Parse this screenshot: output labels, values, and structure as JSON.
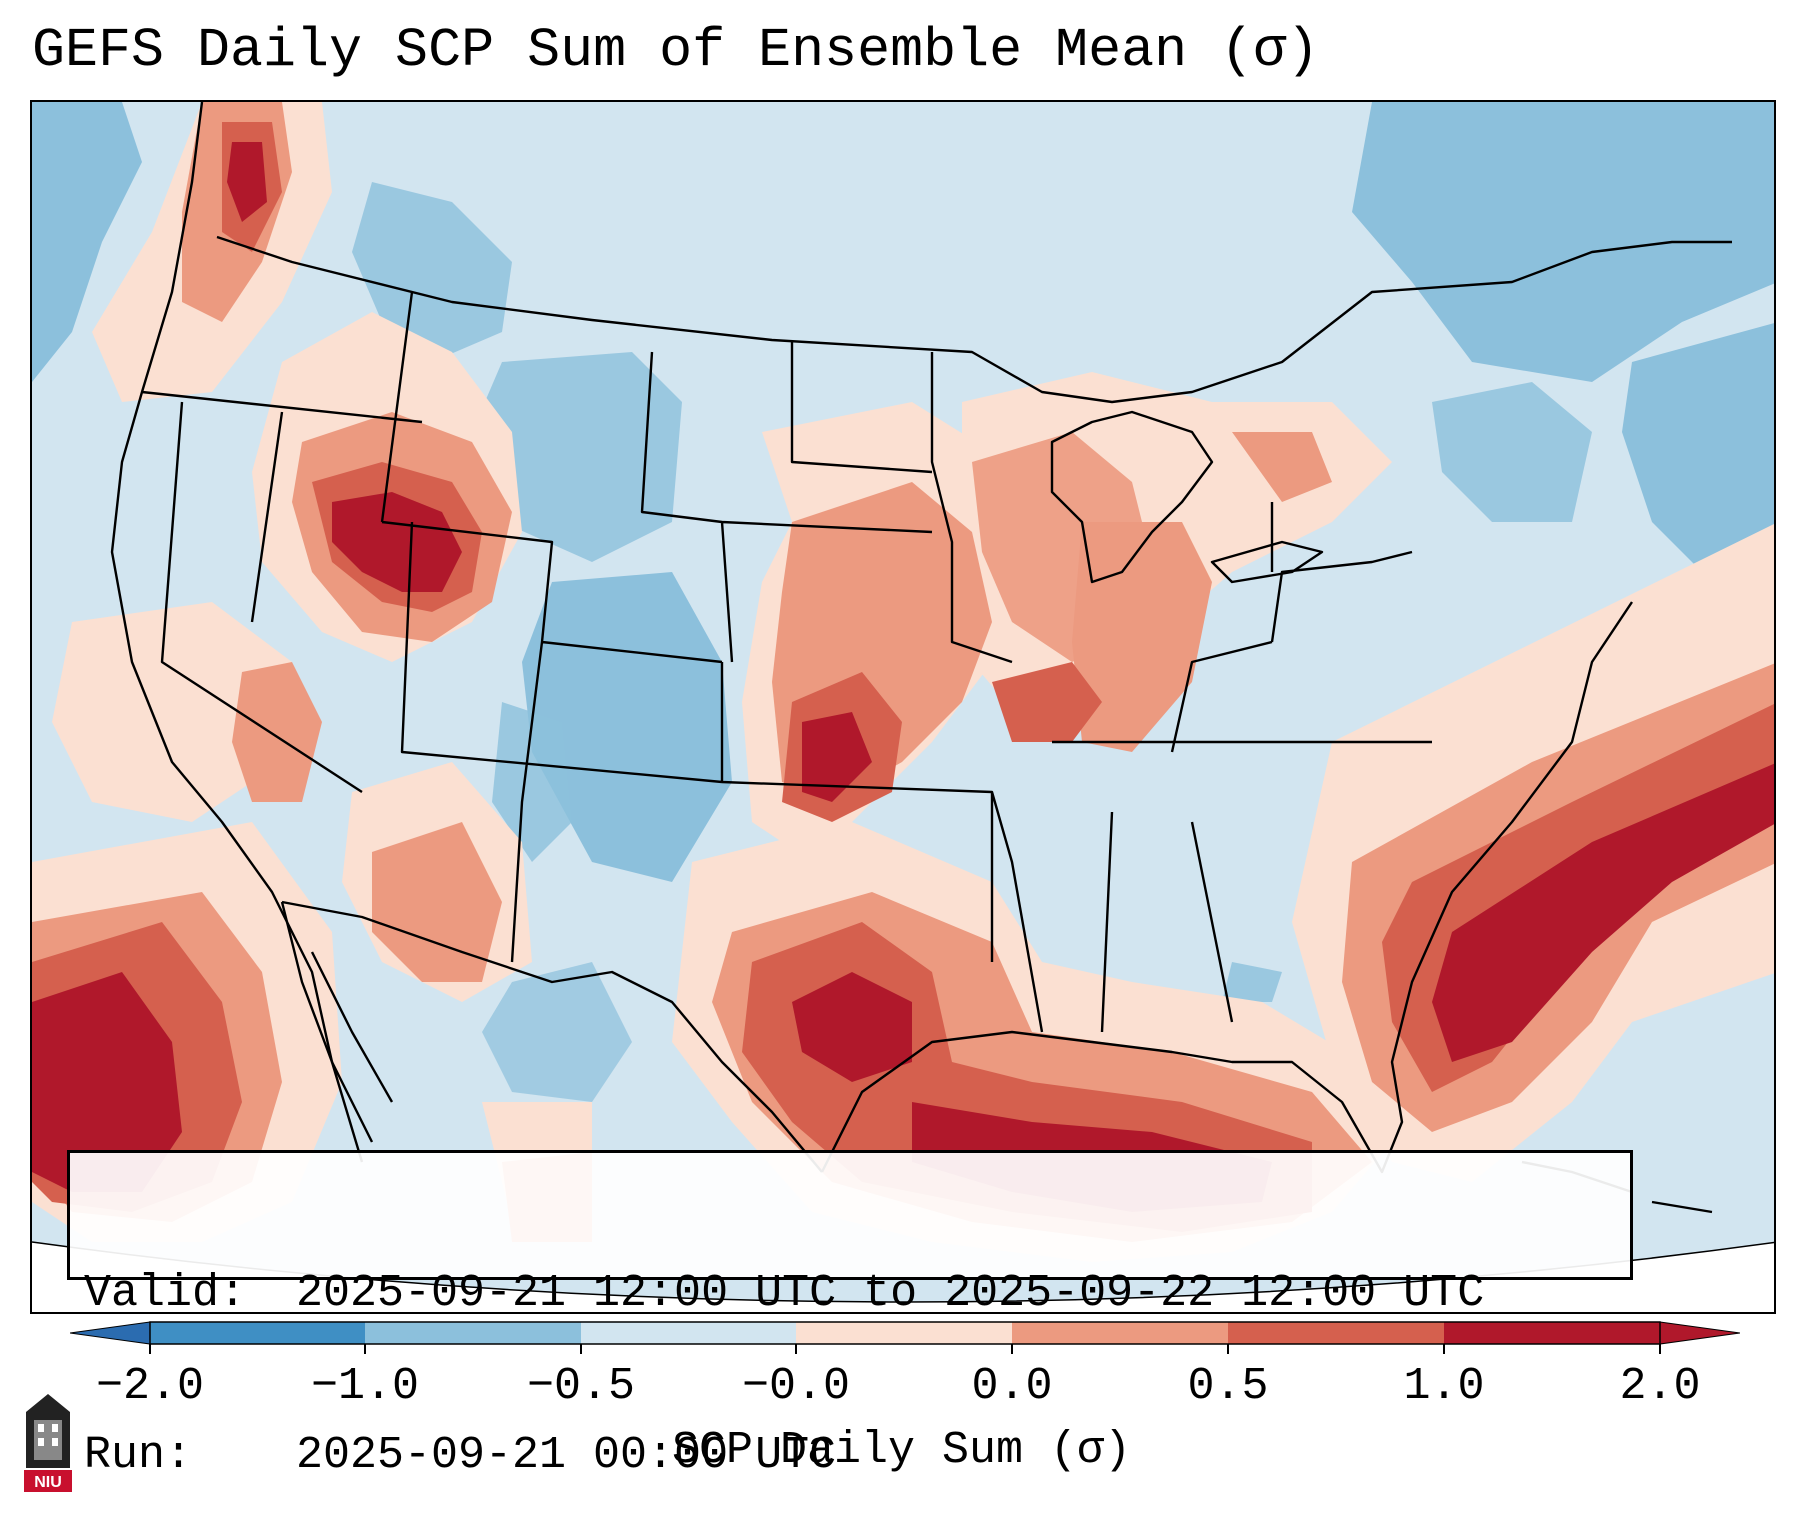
{
  "title": "GEFS Daily SCP Sum of Ensemble Mean (σ)",
  "info_box": {
    "valid_label": "Valid:",
    "valid_value": "2025-09-21 12:00 UTC to 2025-09-22 12:00 UTC",
    "run_label": "Run:",
    "run_value": "2025-09-21 00:00 UTC"
  },
  "colorbar": {
    "label": "SCP Daily Sum (σ)",
    "tick_labels": [
      "−2.0",
      "−1.0",
      "−0.5",
      "−0.0",
      "0.0",
      "0.5",
      "1.0",
      "2.0"
    ],
    "colors": [
      "#3f8fc4",
      "#8cc0dc",
      "#d2e5f0",
      "#fbe0d2",
      "#ec9a80",
      "#d5604e",
      "#b0182b"
    ],
    "under_color": "#2b6cb0",
    "over_color": "#b0182b"
  },
  "map": {
    "background_color": "#d2e5f0",
    "outline_color": "#000000",
    "anomaly_regions": [
      {
        "region": "Pacific Northwest",
        "level": "moderate positive"
      },
      {
        "region": "Northern Rockies / Idaho-Wyoming",
        "level": "strong positive"
      },
      {
        "region": "Central Plains / Kansas",
        "level": "strong positive"
      },
      {
        "region": "Upper Midwest / Great Lakes",
        "level": "moderate positive"
      },
      {
        "region": "Texas / Gulf Coast",
        "level": "strong positive"
      },
      {
        "region": "Florida / Western Atlantic",
        "level": "strong positive"
      },
      {
        "region": "Eastern Pacific off Baja",
        "level": "strong positive"
      },
      {
        "region": "Intermountain West / New Mexico",
        "level": "weak negative"
      },
      {
        "region": "Northern Canada / Quebec",
        "level": "weak negative"
      }
    ]
  },
  "logo": {
    "text": "NIU",
    "name": "Northern Illinois University"
  }
}
